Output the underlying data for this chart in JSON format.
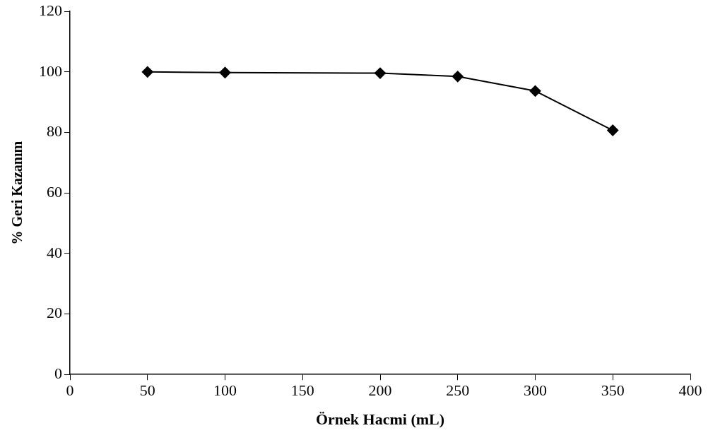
{
  "chart_data": {
    "type": "line",
    "xlabel": "Örnek Hacmi (mL)",
    "ylabel": "% Geri Kazanım",
    "x": [
      50,
      100,
      200,
      250,
      300,
      350
    ],
    "series": [
      {
        "color": "#000000",
        "values": [
          100,
          99.8,
          99.6,
          98.5,
          93.7,
          80.7
        ]
      }
    ],
    "xlim": [
      0,
      400
    ],
    "xticks": [
      0,
      50,
      100,
      150,
      200,
      250,
      300,
      350,
      400
    ],
    "ylim": [
      0,
      120
    ],
    "yticks": [
      0,
      20,
      40,
      60,
      80,
      100,
      120
    ],
    "grid": false,
    "legend": false,
    "marker": "diamond",
    "line_style": "solid"
  }
}
